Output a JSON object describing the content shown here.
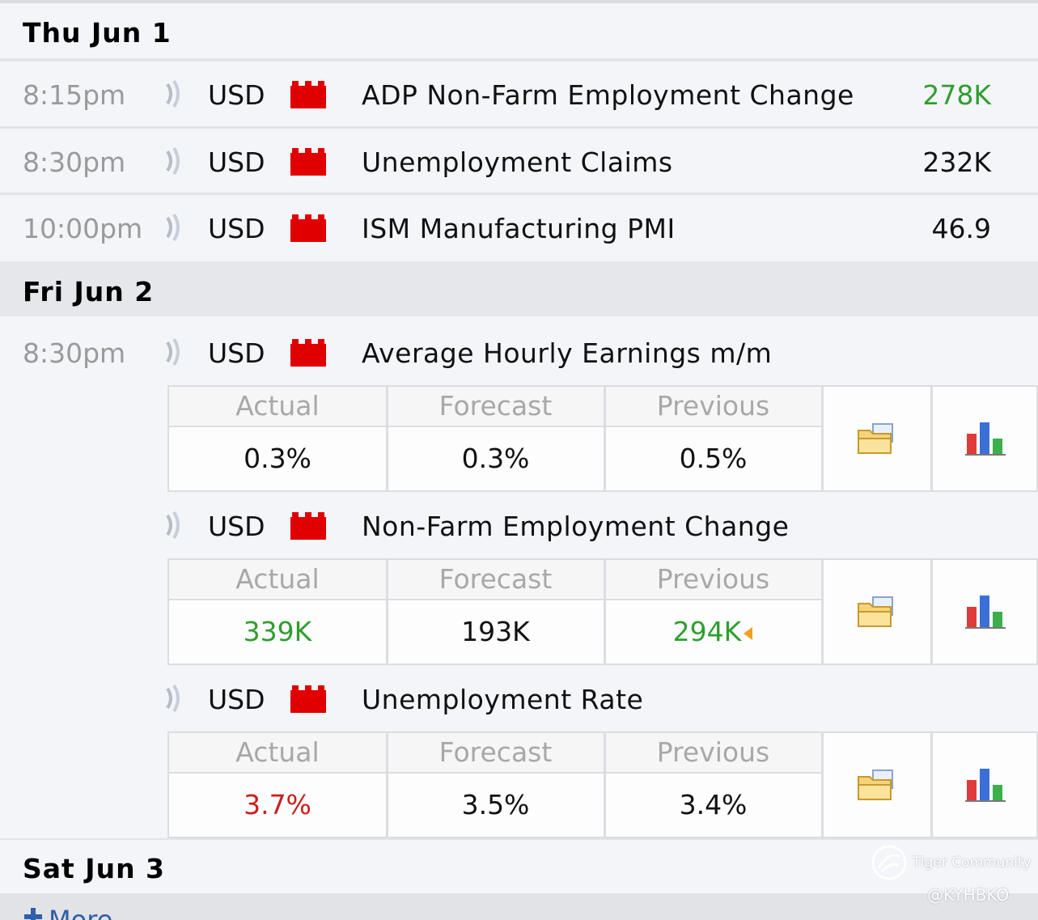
{
  "days": [
    {
      "label": "Thu Jun 1"
    },
    {
      "label": "Fri Jun 2"
    },
    {
      "label": "Sat Jun 3"
    }
  ],
  "thu_events": [
    {
      "time": "8:15pm",
      "currency": "USD",
      "name": "ADP Non-Farm Employment Change",
      "value": "278K",
      "value_color": "#2e9e2e"
    },
    {
      "time": "8:30pm",
      "currency": "USD",
      "name": "Unemployment Claims",
      "value": "232K",
      "value_color": "#111111"
    },
    {
      "time": "10:00pm",
      "currency": "USD",
      "name": "ISM Manufacturing PMI",
      "value": "46.9",
      "value_color": "#111111"
    }
  ],
  "fri_time": "8:30pm",
  "fri_events": [
    {
      "currency": "USD",
      "name": "Average Hourly Earnings m/m",
      "headers": {
        "actual": "Actual",
        "forecast": "Forecast",
        "previous": "Previous"
      },
      "actual": "0.3%",
      "forecast": "0.3%",
      "previous": "0.5%",
      "actual_color": "#111111",
      "previous_color": "#111111"
    },
    {
      "currency": "USD",
      "name": "Non-Farm Employment Change",
      "headers": {
        "actual": "Actual",
        "forecast": "Forecast",
        "previous": "Previous"
      },
      "actual": "339K",
      "forecast": "193K",
      "previous": "294K",
      "actual_color": "#2e9e2e",
      "previous_color": "#2e9e2e"
    },
    {
      "currency": "USD",
      "name": "Unemployment Rate",
      "headers": {
        "actual": "Actual",
        "forecast": "Forecast",
        "previous": "Previous"
      },
      "actual": "3.7%",
      "forecast": "3.5%",
      "previous": "3.4%",
      "actual_color": "#c8201e",
      "previous_color": "#111111"
    }
  ],
  "more_label": "More",
  "watermark": {
    "brand": "Tiger Community",
    "handle": "@KYHBKO"
  },
  "icons": {
    "speaker": "speaker-icon",
    "impact": "high-impact-icon",
    "detail": "folder-detail-icon",
    "chart": "bar-chart-icon",
    "revised": "revised-arrow-icon"
  }
}
